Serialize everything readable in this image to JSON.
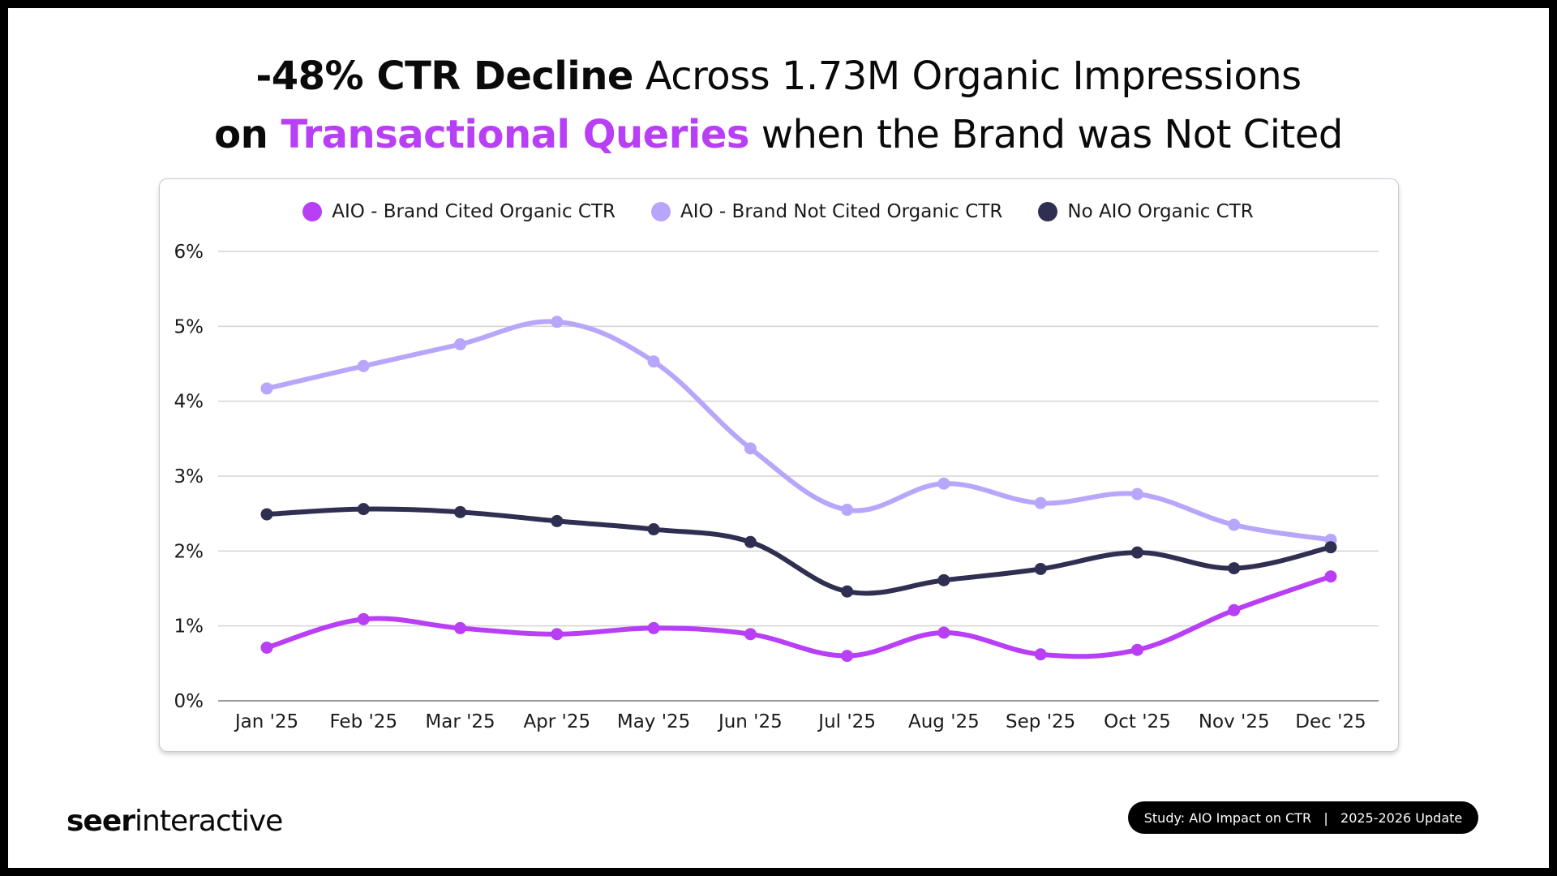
{
  "title": {
    "line1_bold": "-48% CTR Decline",
    "line1_rest": " Across 1.73M Organic Impressions",
    "line2_bold": "on ",
    "line2_accent": "Transactional Queries",
    "line2_rest": " when the Brand was Not Cited"
  },
  "colors": {
    "accent": "#b83ff5",
    "brand_cited": "#b83ff5",
    "brand_not_cited": "#b8a6fb",
    "no_aio": "#2f2f52",
    "grid": "#d4d4d4",
    "baseline": "#9a9a9a"
  },
  "footer": {
    "logo_bold": "seer",
    "logo_light": "interactive",
    "badge": "Study: AIO Impact on CTR   |   2025-2026 Update"
  },
  "chart_data": {
    "type": "line",
    "title": "-48% CTR Decline Across 1.73M Organic Impressions on Transactional Queries when the Brand was Not Cited",
    "xlabel": "",
    "ylabel": "",
    "categories": [
      "Jan '25",
      "Feb '25",
      "Mar '25",
      "Apr '25",
      "May '25",
      "Jun '25",
      "Jul '25",
      "Aug '25",
      "Sep '25",
      "Oct '25",
      "Nov '25",
      "Dec '25"
    ],
    "ylim": [
      0,
      6
    ],
    "yticks": [
      0,
      1,
      2,
      3,
      4,
      5,
      6
    ],
    "ytick_labels": [
      "0%",
      "1%",
      "2%",
      "3%",
      "4%",
      "5%",
      "6%"
    ],
    "y_unit": "%",
    "grid": true,
    "legend_position": "top-center",
    "smooth": true,
    "series": [
      {
        "name": "AIO - Brand Cited Organic CTR",
        "color": "#b83ff5",
        "values": [
          0.71,
          1.09,
          0.97,
          0.89,
          0.97,
          0.89,
          0.6,
          0.91,
          0.62,
          0.68,
          1.21,
          1.66
        ]
      },
      {
        "name": "AIO - Brand Not Cited Organic CTR",
        "color": "#b8a6fb",
        "values": [
          4.17,
          4.47,
          4.76,
          5.06,
          4.53,
          3.37,
          2.55,
          2.9,
          2.64,
          2.76,
          2.35,
          2.15
        ]
      },
      {
        "name": "No AIO Organic CTR",
        "color": "#2f2f52",
        "values": [
          2.49,
          2.56,
          2.52,
          2.4,
          2.29,
          2.12,
          1.46,
          1.61,
          1.76,
          1.98,
          1.77,
          2.05
        ]
      }
    ]
  }
}
